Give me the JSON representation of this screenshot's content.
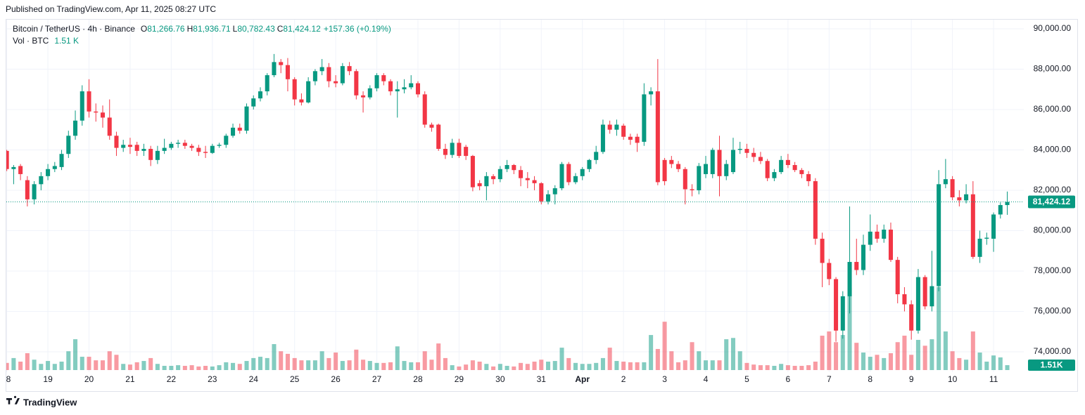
{
  "publisher": "Published on TradingView.com, Apr 11, 2025 08:27 UTC",
  "brand": "TradingView",
  "chart_data": {
    "type": "candlestick",
    "symbol": "Bitcoin / TetherUS · 4h · Binance",
    "header": [
      {
        "key": "O",
        "label": "81,266.76"
      },
      {
        "key": "H",
        "label": "81,936.71"
      },
      {
        "key": "L",
        "label": "80,782.43"
      },
      {
        "key": "C",
        "label": "81,424.12"
      }
    ],
    "change_label": "+157.36 (+0.19%)",
    "volume_title": "Vol · BTC",
    "volume_header_label": "1.51 K",
    "price_tag_label": "81,424.12",
    "volume_tag_label": "1.51K",
    "up_color": "#089981",
    "down_color": "#f23645",
    "volume_up_color": "rgba(8,153,129,0.5)",
    "volume_down_color": "rgba(242,54,69,0.5)",
    "grid": true,
    "last_price_line": true,
    "xlim": [
      -0.99,
      148.41
    ],
    "xticks": [
      {
        "value": 0,
        "label": "8"
      },
      {
        "value": 6,
        "label": "19"
      },
      {
        "value": 12,
        "label": "20"
      },
      {
        "value": 18,
        "label": "21"
      },
      {
        "value": 24,
        "label": "22"
      },
      {
        "value": 30,
        "label": "23"
      },
      {
        "value": 36,
        "label": "24"
      },
      {
        "value": 42,
        "label": "25"
      },
      {
        "value": 48,
        "label": "26"
      },
      {
        "value": 54,
        "label": "27"
      },
      {
        "value": 60,
        "label": "28"
      },
      {
        "value": 66,
        "label": "29"
      },
      {
        "value": 72,
        "label": "30"
      },
      {
        "value": 78,
        "label": "31"
      },
      {
        "value": 84,
        "label": "Apr"
      },
      {
        "value": 90,
        "label": "2"
      },
      {
        "value": 96,
        "label": "3"
      },
      {
        "value": 102,
        "label": "4"
      },
      {
        "value": 108,
        "label": "5"
      },
      {
        "value": 114,
        "label": "6"
      },
      {
        "value": 120,
        "label": "7"
      },
      {
        "value": 126,
        "label": "8"
      },
      {
        "value": 132,
        "label": "9"
      },
      {
        "value": 138,
        "label": "10"
      },
      {
        "value": 144,
        "label": "11"
      }
    ],
    "ylim": [
      72990,
      90450
    ],
    "yticks": [
      {
        "value": 74000,
        "label": "74,000.00"
      },
      {
        "value": 76000,
        "label": "76,000.00"
      },
      {
        "value": 78000,
        "label": "78,000.00"
      },
      {
        "value": 80000,
        "label": "80,000.00"
      },
      {
        "value": 82000,
        "label": "82,000.00"
      },
      {
        "value": 84000,
        "label": "84,000.00"
      },
      {
        "value": 86000,
        "label": "86,000.00"
      },
      {
        "value": 88000,
        "label": "88,000.00"
      },
      {
        "value": 90000,
        "label": "90,000.00"
      }
    ],
    "volume_lim": [
      0,
      108
    ],
    "open": [
      83950,
      83050,
      83200,
      82500,
      81550,
      82300,
      82700,
      83050,
      83150,
      83800,
      84700,
      85450,
      86900,
      85900,
      85850,
      85600,
      84700,
      84100,
      84250,
      84250,
      83950,
      84050,
      83500,
      83950,
      84100,
      84300,
      84350,
      84200,
      84100,
      83900,
      83850,
      84200,
      84250,
      84700,
      85100,
      84950,
      86150,
      86550,
      86900,
      87700,
      88350,
      88200,
      87500,
      86500,
      86350,
      87400,
      87900,
      88100,
      87400,
      87300,
      88150,
      87900,
      86700,
      86600,
      87050,
      87700,
      87400,
      86900,
      87000,
      87100,
      87300,
      86750,
      85250,
      85250,
      84050,
      83750,
      84350,
      84150,
      83700,
      82350,
      82200,
      82700,
      82550,
      83050,
      83250,
      83000,
      82600,
      82500,
      82350,
      81450,
      81800,
      82100,
      83300,
      82400,
      82700,
      83050,
      83500,
      83900,
      85250,
      85000,
      85200,
      84650,
      84650,
      84400,
      86750,
      86900,
      83500,
      83500,
      83300,
      83050,
      82050,
      82000,
      82800,
      82800,
      84000,
      82700,
      82900,
      84000,
      84050,
      83850,
      83650,
      83450,
      82600,
      82900,
      83500,
      83250,
      83000,
      82800,
      82450,
      79600,
      78400,
      77600,
      75050,
      76750,
      78450,
      78050,
      79300,
      79950,
      79600,
      80050,
      78550,
      76850,
      76350,
      75050,
      77700,
      76250,
      77250,
      82300,
      82550,
      81650,
      81500,
      81800,
      78700,
      79600,
      79600,
      80800,
      81266.76
    ],
    "high": [
      84000,
      83250,
      83300,
      82700,
      82450,
      82900,
      83300,
      83400,
      84000,
      84950,
      85950,
      87200,
      87500,
      86300,
      86200,
      86500,
      84900,
      84500,
      84600,
      84400,
      84300,
      84200,
      84200,
      84550,
      84400,
      84500,
      84500,
      84300,
      84250,
      84200,
      84300,
      84350,
      84800,
      85300,
      85300,
      86300,
      86700,
      87100,
      87800,
      88750,
      88500,
      88550,
      87600,
      86800,
      87600,
      88000,
      88500,
      88300,
      87700,
      88300,
      88350,
      88000,
      86900,
      87200,
      87800,
      87800,
      87500,
      87400,
      87500,
      87700,
      87400,
      86900,
      85350,
      85300,
      84300,
      84550,
      84550,
      84250,
      83750,
      82500,
      82900,
      82800,
      83200,
      83500,
      83300,
      83200,
      82900,
      82700,
      82400,
      82000,
      82250,
      83400,
      83400,
      82850,
      83150,
      83550,
      84200,
      85500,
      85450,
      85500,
      85300,
      84800,
      84800,
      87300,
      87100,
      88500,
      83600,
      83700,
      83450,
      83150,
      82300,
      83350,
      83700,
      84100,
      84700,
      83500,
      84600,
      84400,
      84300,
      84100,
      83900,
      83550,
      83050,
      83700,
      83800,
      83400,
      83100,
      82950,
      82600,
      79900,
      78600,
      77700,
      77000,
      81200,
      79600,
      79800,
      80800,
      80300,
      80300,
      80400,
      78700,
      77200,
      76550,
      78100,
      77800,
      79000,
      83000,
      83550,
      82700,
      82000,
      82300,
      82450,
      80000,
      79900,
      80900,
      81400,
      81936.71
    ],
    "low": [
      82950,
      82300,
      82500,
      81200,
      81300,
      82000,
      82500,
      82900,
      83000,
      83600,
      84500,
      85200,
      85600,
      85400,
      85100,
      84500,
      83700,
      83900,
      83800,
      83700,
      83700,
      83200,
      83300,
      83800,
      84000,
      84100,
      84050,
      83950,
      83700,
      83600,
      83800,
      84100,
      84100,
      84600,
      84800,
      84800,
      86000,
      86400,
      86700,
      87600,
      87800,
      86900,
      86200,
      86200,
      86300,
      87200,
      87700,
      87100,
      87100,
      87200,
      87700,
      86500,
      85850,
      86500,
      86900,
      87200,
      86700,
      85600,
      86800,
      87000,
      86600,
      85100,
      84900,
      83950,
      83550,
      83600,
      83600,
      83500,
      81950,
      82000,
      81500,
      82300,
      82400,
      82900,
      82800,
      82200,
      82100,
      82000,
      81300,
      81300,
      81300,
      82000,
      82250,
      82300,
      82500,
      82900,
      83300,
      83800,
      84800,
      84700,
      84500,
      84250,
      83900,
      84200,
      86200,
      82250,
      82250,
      83100,
      82900,
      81300,
      81700,
      81800,
      82600,
      82600,
      81700,
      82500,
      82800,
      83800,
      83600,
      83400,
      83300,
      82450,
      82450,
      82800,
      83100,
      82900,
      82600,
      82200,
      79300,
      77200,
      77300,
      74500,
      74650,
      75900,
      77800,
      77800,
      79000,
      79400,
      79400,
      78450,
      76400,
      76000,
      74600,
      74900,
      76100,
      76000,
      77000,
      82100,
      81500,
      81200,
      81350,
      78600,
      78400,
      79300,
      78950,
      80600,
      80782.43
    ],
    "close": [
      83050,
      83150,
      82800,
      81550,
      82300,
      82700,
      83050,
      83200,
      83800,
      84700,
      85450,
      86900,
      85900,
      85850,
      85600,
      84700,
      84100,
      84250,
      84150,
      83950,
      84050,
      83500,
      83950,
      84100,
      84300,
      84350,
      84200,
      84100,
      83900,
      83850,
      84200,
      84250,
      84700,
      85100,
      84950,
      86150,
      86550,
      86900,
      87700,
      88350,
      88200,
      87500,
      86500,
      86350,
      87400,
      87900,
      88100,
      87400,
      87300,
      88150,
      87900,
      86700,
      86600,
      87050,
      87700,
      87400,
      86900,
      87000,
      87100,
      87300,
      86750,
      85250,
      85100,
      84050,
      83750,
      84350,
      83700,
      83700,
      82150,
      82200,
      82700,
      82550,
      83050,
      83250,
      83000,
      82600,
      82500,
      82350,
      81450,
      81800,
      82100,
      83300,
      82400,
      82700,
      83050,
      83500,
      83900,
      85250,
      85000,
      85250,
      84650,
      84500,
      84350,
      86750,
      86900,
      82400,
      82450,
      83300,
      83050,
      82050,
      82000,
      83200,
      83300,
      84000,
      82700,
      83300,
      84000,
      84050,
      83850,
      83650,
      83450,
      82600,
      82900,
      83500,
      83250,
      83000,
      82800,
      82450,
      79600,
      78400,
      77600,
      75050,
      76750,
      78450,
      78050,
      79300,
      79950,
      79600,
      80050,
      78550,
      76850,
      76350,
      75050,
      77700,
      76250,
      77250,
      82300,
      82550,
      81650,
      81500,
      81800,
      78700,
      79600,
      79650,
      80800,
      81266.76,
      81424.12
    ],
    "volume": [
      2.2,
      3.7,
      2.6,
      5.2,
      3.2,
      1.9,
      2.8,
      1.9,
      2.6,
      5.8,
      9.5,
      4.1,
      4.1,
      3.0,
      3.0,
      5.8,
      4.7,
      1.9,
      1.7,
      2.4,
      2.8,
      3.7,
      1.9,
      1.3,
      1.3,
      1.5,
      1.3,
      1.5,
      1.1,
      1.3,
      1.1,
      1.5,
      2.4,
      2.2,
      1.9,
      2.8,
      3.7,
      4.1,
      3.7,
      8.0,
      5.8,
      5.0,
      3.7,
      3.0,
      3.0,
      3.0,
      5.8,
      3.7,
      5.4,
      2.8,
      3.0,
      6.3,
      3.2,
      2.8,
      2.2,
      2.2,
      2.4,
      7.3,
      2.8,
      2.4,
      2.4,
      5.8,
      3.2,
      8.2,
      3.7,
      1.5,
      1.1,
      1.7,
      3.0,
      2.6,
      1.9,
      1.1,
      1.9,
      1.3,
      1.1,
      2.2,
      1.9,
      2.6,
      3.2,
      2.6,
      2.8,
      6.9,
      3.7,
      2.2,
      1.9,
      1.9,
      2.2,
      3.7,
      6.9,
      2.8,
      2.6,
      2.4,
      2.4,
      2.4,
      10.8,
      6.5,
      14.9,
      5.8,
      2.4,
      3.0,
      8.6,
      5.8,
      3.0,
      3.0,
      3.0,
      9.5,
      9.9,
      5.8,
      2.2,
      1.7,
      1.5,
      1.5,
      1.3,
      1.9,
      1.5,
      1.3,
      1.3,
      1.5,
      2.6,
      10.6,
      11.9,
      8.6,
      10.8,
      25.4,
      8.4,
      5.4,
      4.1,
      4.7,
      3.7,
      5.2,
      8.6,
      10.6,
      4.7,
      9.3,
      7.5,
      9.5,
      25.6,
      11.9,
      5.8,
      3.7,
      3.2,
      11.9,
      5.4,
      2.6,
      4.5,
      3.9,
      1.51
    ]
  }
}
